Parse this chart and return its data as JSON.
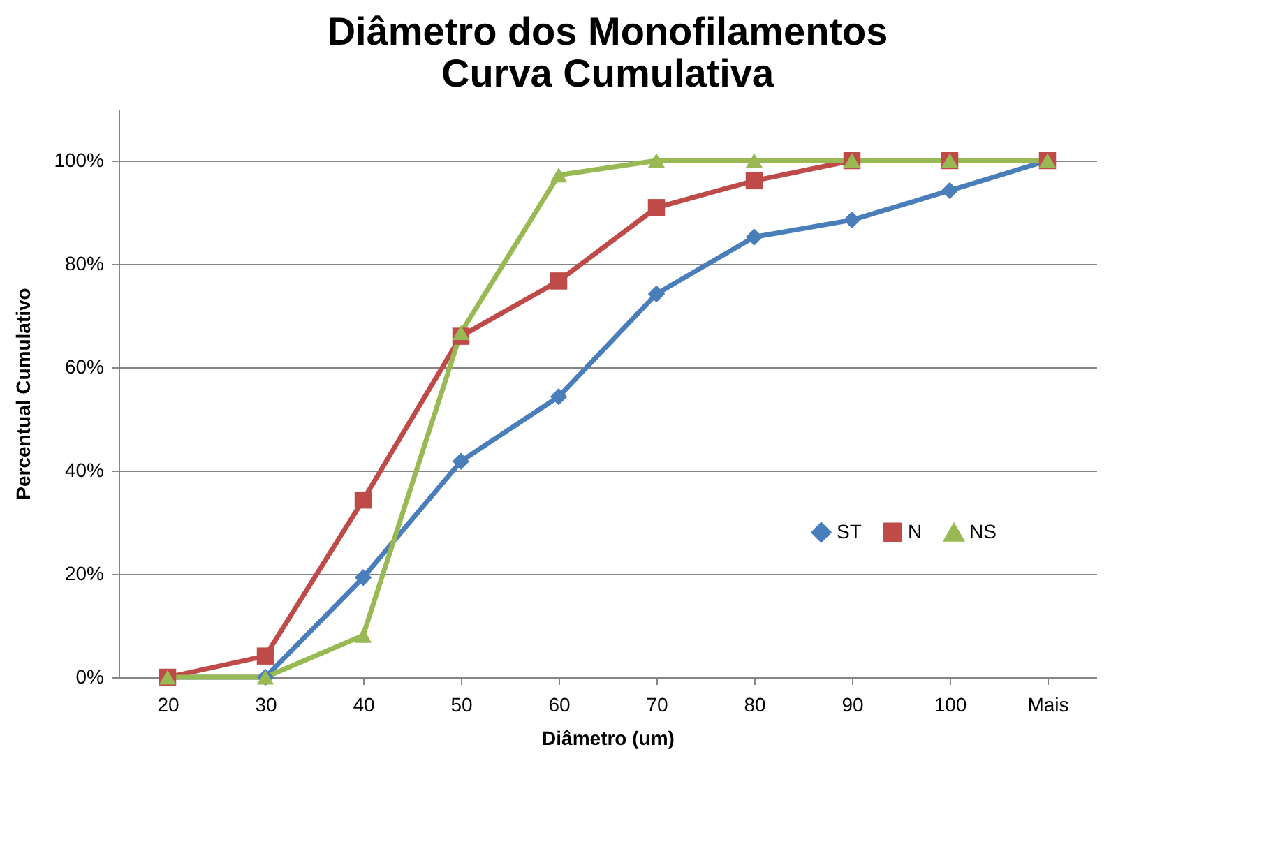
{
  "chart_data": {
    "type": "line",
    "title": "Diâmetro dos Monofilamentos\nCurva Cumulativa",
    "xlabel": "Diâmetro (um)",
    "ylabel": "Percentual Cumulativo",
    "categories": [
      "20",
      "30",
      "40",
      "50",
      "60",
      "70",
      "80",
      "90",
      "100",
      "Mais"
    ],
    "series": [
      {
        "name": "ST",
        "color": "#4a7ebb",
        "marker": "diamond",
        "values": [
          0,
          0,
          19.3,
          41.8,
          54.3,
          74.2,
          85.2,
          88.5,
          94.2,
          100
        ]
      },
      {
        "name": "N",
        "color": "#be4b48",
        "marker": "square",
        "values": [
          0,
          4.1,
          34.3,
          66,
          76.7,
          90.9,
          96.1,
          100,
          100,
          100
        ]
      },
      {
        "name": "NS",
        "color": "#98b954",
        "marker": "triangle",
        "values": [
          0,
          0,
          8.1,
          66.7,
          97.2,
          100,
          100,
          100,
          100,
          100
        ]
      }
    ],
    "ylim": [
      0,
      110
    ],
    "yticks": [
      {
        "value": 0,
        "label": "0%"
      },
      {
        "value": 20,
        "label": "20%"
      },
      {
        "value": 40,
        "label": "40%"
      },
      {
        "value": 60,
        "label": "60%"
      },
      {
        "value": 80,
        "label": "80%"
      },
      {
        "value": 100,
        "label": "100%"
      }
    ],
    "grid": "y",
    "legend": "right",
    "line_style": "solid"
  }
}
